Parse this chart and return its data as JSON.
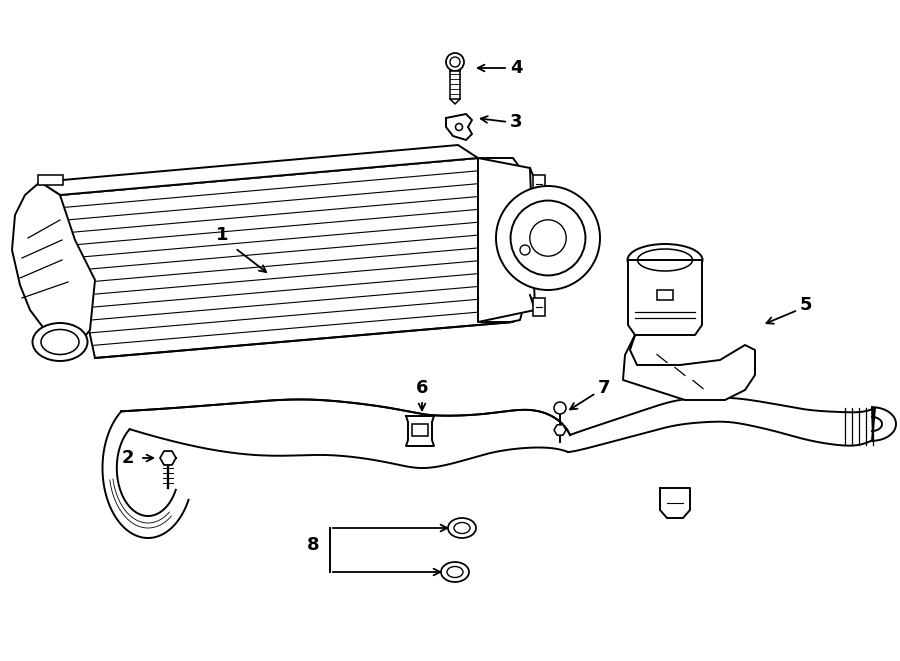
{
  "bg_color": "#ffffff",
  "lc": "#000000",
  "lw": 1.4,
  "figsize": [
    9.0,
    6.61
  ],
  "dpi": 100
}
